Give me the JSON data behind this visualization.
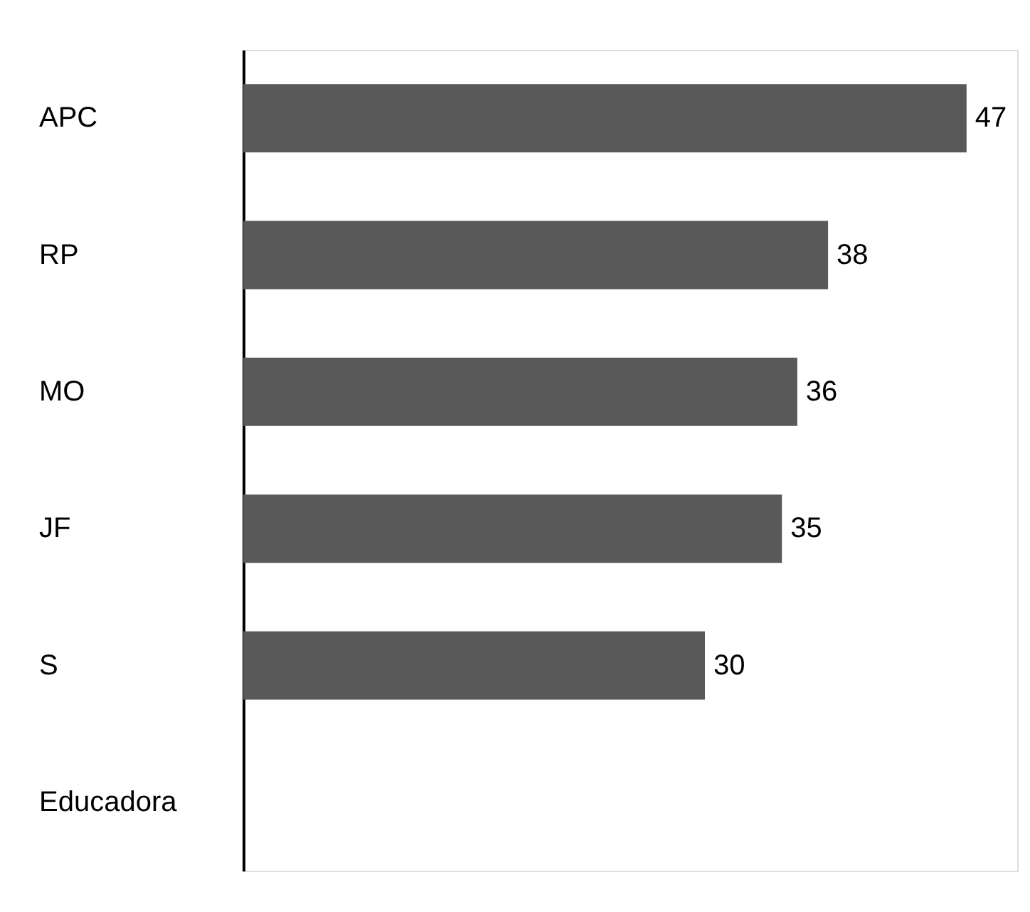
{
  "chart_data": {
    "type": "bar",
    "orientation": "horizontal",
    "data_labels": true,
    "categories": [
      "APC",
      "RP",
      "MO",
      "JF",
      "S",
      "Educadora"
    ],
    "values": [
      47,
      38,
      36,
      35,
      30,
      null
    ],
    "color": "#595959"
  }
}
